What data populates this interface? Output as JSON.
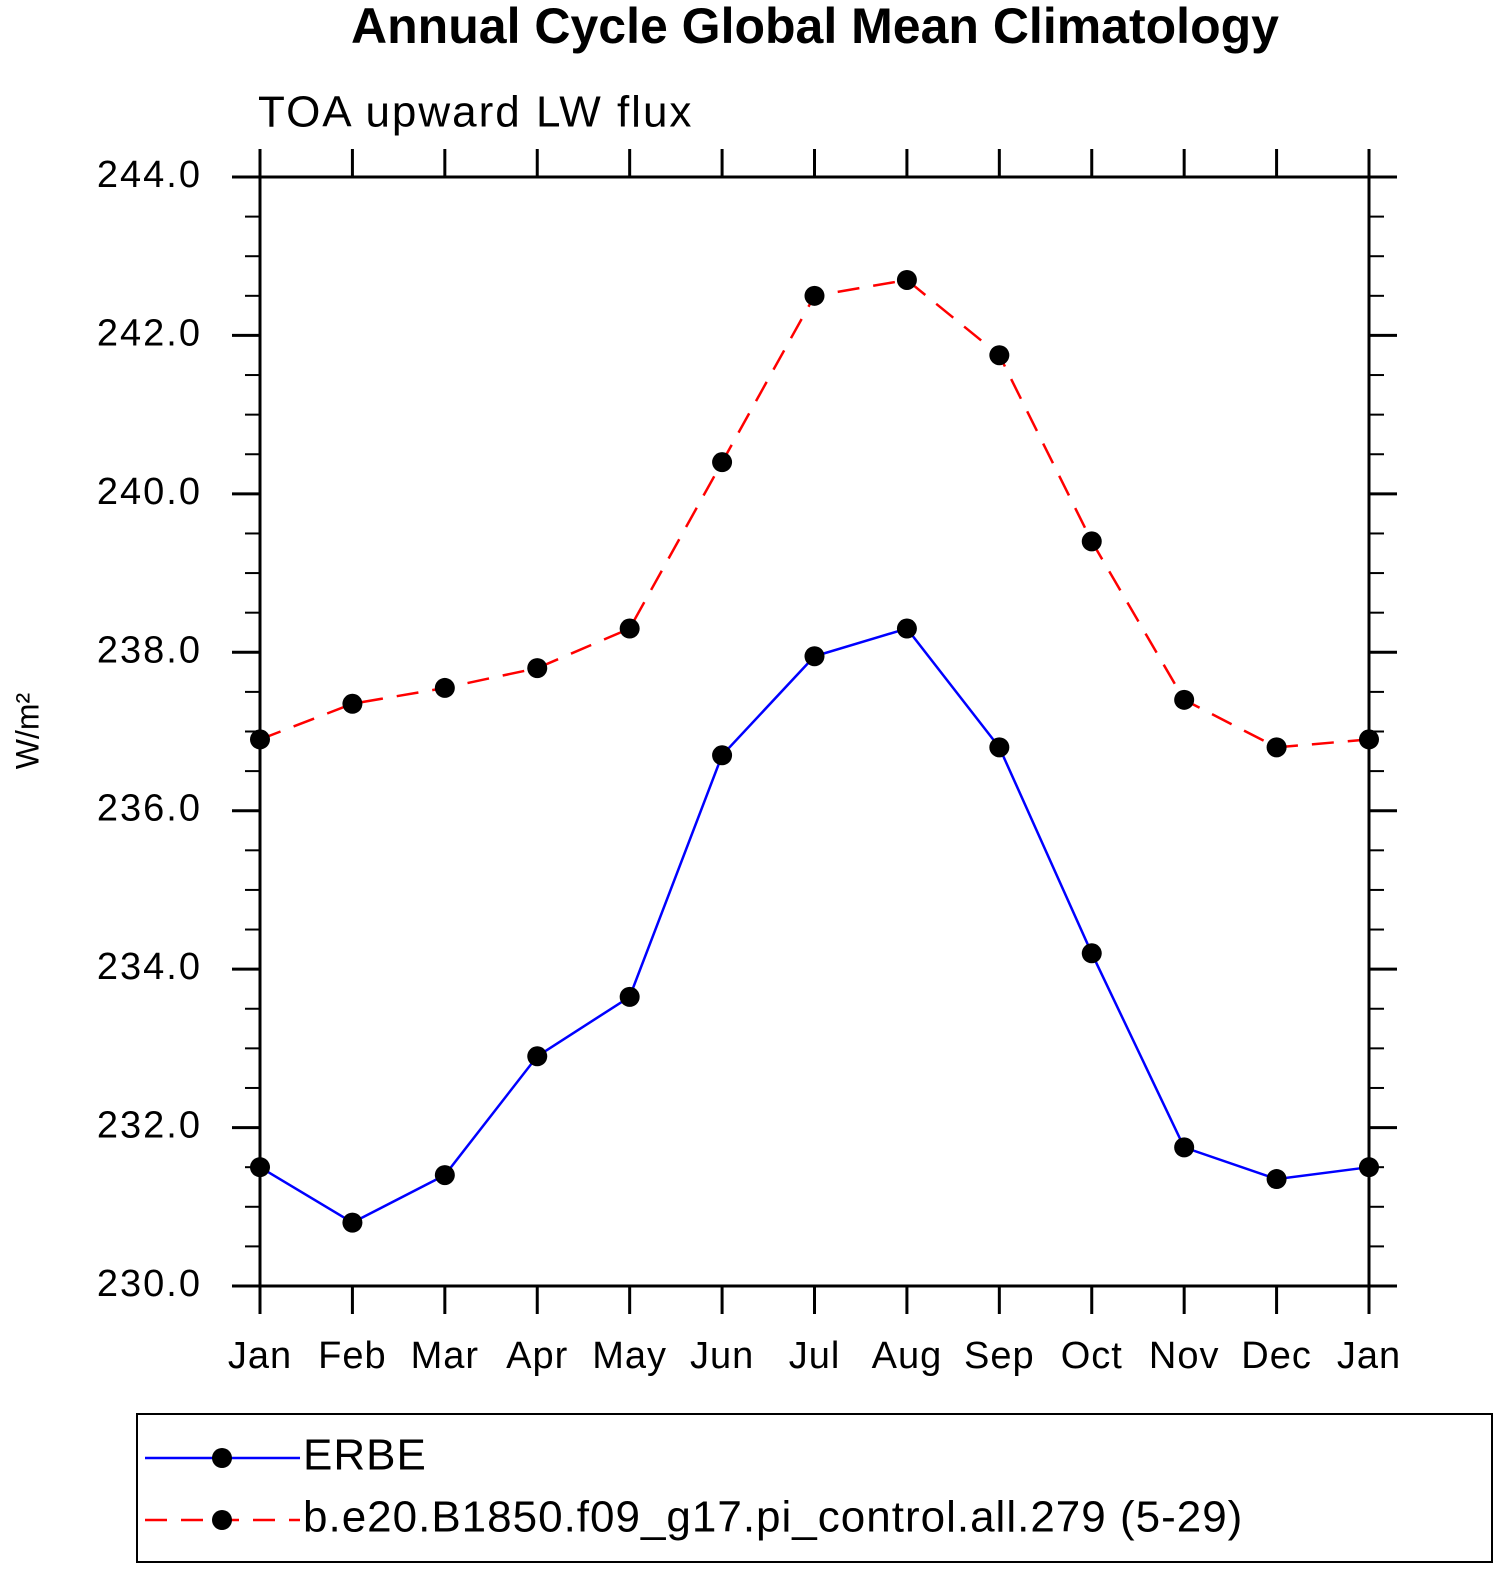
{
  "chart_data": {
    "type": "line",
    "title": "Annual Cycle Global Mean Climatology",
    "subtitle": "TOA upward LW flux",
    "ylabel": "W/m²",
    "categories": [
      "Jan",
      "Feb",
      "Mar",
      "Apr",
      "May",
      "Jun",
      "Jul",
      "Aug",
      "Sep",
      "Oct",
      "Nov",
      "Dec",
      "Jan"
    ],
    "series": [
      {
        "name": "ERBE",
        "color": "#0000ff",
        "line_style": "solid",
        "marker_color": "#000000",
        "values": [
          231.5,
          230.8,
          231.4,
          232.9,
          233.65,
          236.7,
          237.95,
          238.3,
          236.8,
          234.2,
          231.75,
          231.35,
          231.5
        ]
      },
      {
        "name": "b.e20.B1850.f09_g17.pi_control.all.279 (5-29)",
        "color": "#ff0000",
        "line_style": "dashed",
        "marker_color": "#000000",
        "values": [
          236.9,
          237.35,
          237.55,
          237.8,
          238.3,
          240.4,
          242.5,
          242.7,
          241.75,
          239.4,
          237.4,
          236.8,
          236.9
        ]
      }
    ],
    "ylim": [
      230,
      244
    ],
    "yticks": [
      {
        "value": 230,
        "label": "230.0"
      },
      {
        "value": 232,
        "label": "232.0"
      },
      {
        "value": 234,
        "label": "234.0"
      },
      {
        "value": 236,
        "label": "236.0"
      },
      {
        "value": 238,
        "label": "238.0"
      },
      {
        "value": 240,
        "label": "240.0"
      },
      {
        "value": 242,
        "label": "242.0"
      },
      {
        "value": 244,
        "label": "244.0"
      }
    ],
    "y_minor_ticks": [
      230.5,
      231,
      231.5,
      232.5,
      233,
      233.5,
      234.5,
      235,
      235.5,
      236.5,
      237,
      237.5,
      238.5,
      239,
      239.5,
      240.5,
      241,
      241.5,
      242.5,
      243,
      243.5
    ],
    "grid": false,
    "legend": "bottom"
  }
}
